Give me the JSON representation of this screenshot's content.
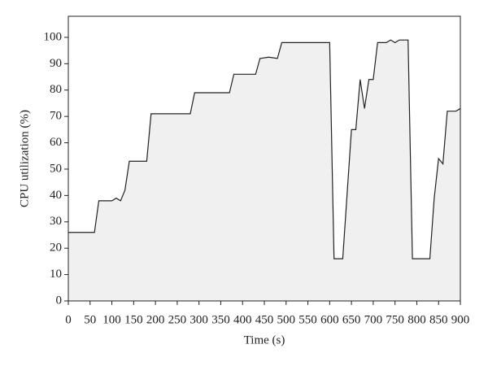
{
  "chart_data": {
    "type": "area",
    "xlabel": "Time (s)",
    "ylabel": "CPU utilization (%)",
    "x": [
      0,
      60,
      70,
      100,
      110,
      120,
      130,
      140,
      180,
      190,
      280,
      290,
      370,
      380,
      430,
      440,
      460,
      480,
      490,
      500,
      600,
      610,
      630,
      650,
      660,
      670,
      680,
      690,
      700,
      710,
      730,
      740,
      750,
      760,
      780,
      790,
      830,
      840,
      850,
      860,
      870,
      890,
      900
    ],
    "series": [
      {
        "color": "#222222",
        "fill": "#f0f0f0",
        "values": [
          26,
          26,
          38,
          38,
          39,
          38,
          42,
          53,
          53,
          71,
          71,
          79,
          79,
          86,
          86,
          92,
          92.5,
          92,
          98,
          98,
          98,
          16,
          16,
          65,
          65,
          84,
          73,
          84,
          84,
          98,
          98,
          99,
          98,
          99,
          99,
          16,
          16,
          39,
          54,
          52,
          72,
          72,
          73
        ]
      }
    ],
    "xlim": [
      0,
      900
    ],
    "xticks": [
      0,
      50,
      100,
      150,
      200,
      250,
      300,
      350,
      400,
      450,
      500,
      550,
      600,
      650,
      700,
      750,
      800,
      850,
      900
    ],
    "ylim": [
      0,
      108
    ],
    "yticks": [
      0,
      10,
      20,
      30,
      40,
      50,
      60,
      70,
      80,
      90,
      100
    ]
  }
}
